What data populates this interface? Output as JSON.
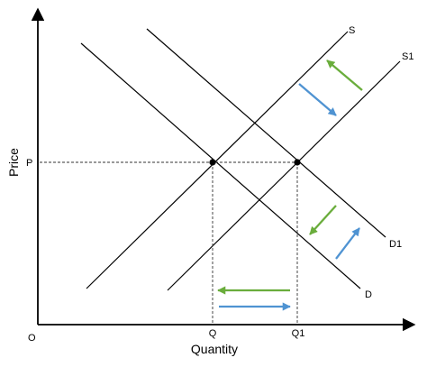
{
  "diagram": {
    "axis": {
      "x_title": "Quantity",
      "y_title": "Price",
      "origin": "O"
    },
    "curves": {
      "s": "S",
      "s1": "S1",
      "d": "D",
      "d1": "D1"
    },
    "ticks": {
      "p": "P",
      "q": "Q",
      "q1": "Q1"
    },
    "colors": {
      "green_arrow": "#6aad3c",
      "blue_arrow": "#4f93d2"
    }
  }
}
